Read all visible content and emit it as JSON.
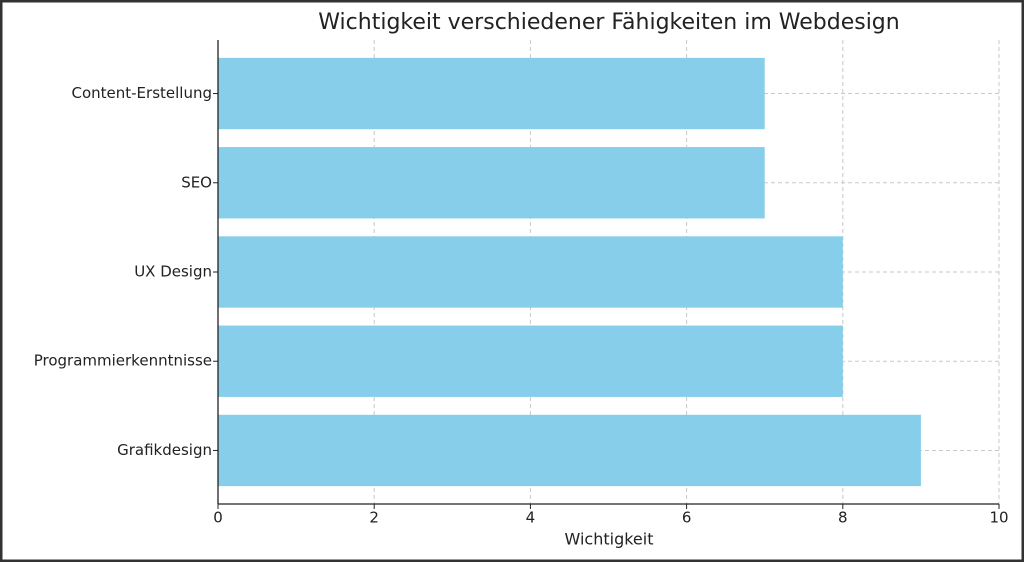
{
  "chart_data": {
    "type": "barh",
    "title": "Wichtigkeit verschiedener Fähigkeiten im Webdesign",
    "x_label": "Wichtigkeit",
    "categories": [
      "Grafikdesign",
      "Programmierkenntnisse",
      "UX Design",
      "SEO",
      "Content-Erstellung"
    ],
    "values": [
      9,
      8,
      8,
      7,
      7
    ],
    "color": "#87ceeb",
    "xlim": [
      0,
      10
    ],
    "xticks": [
      0,
      2,
      4,
      6,
      8,
      10
    ],
    "grid": true
  }
}
